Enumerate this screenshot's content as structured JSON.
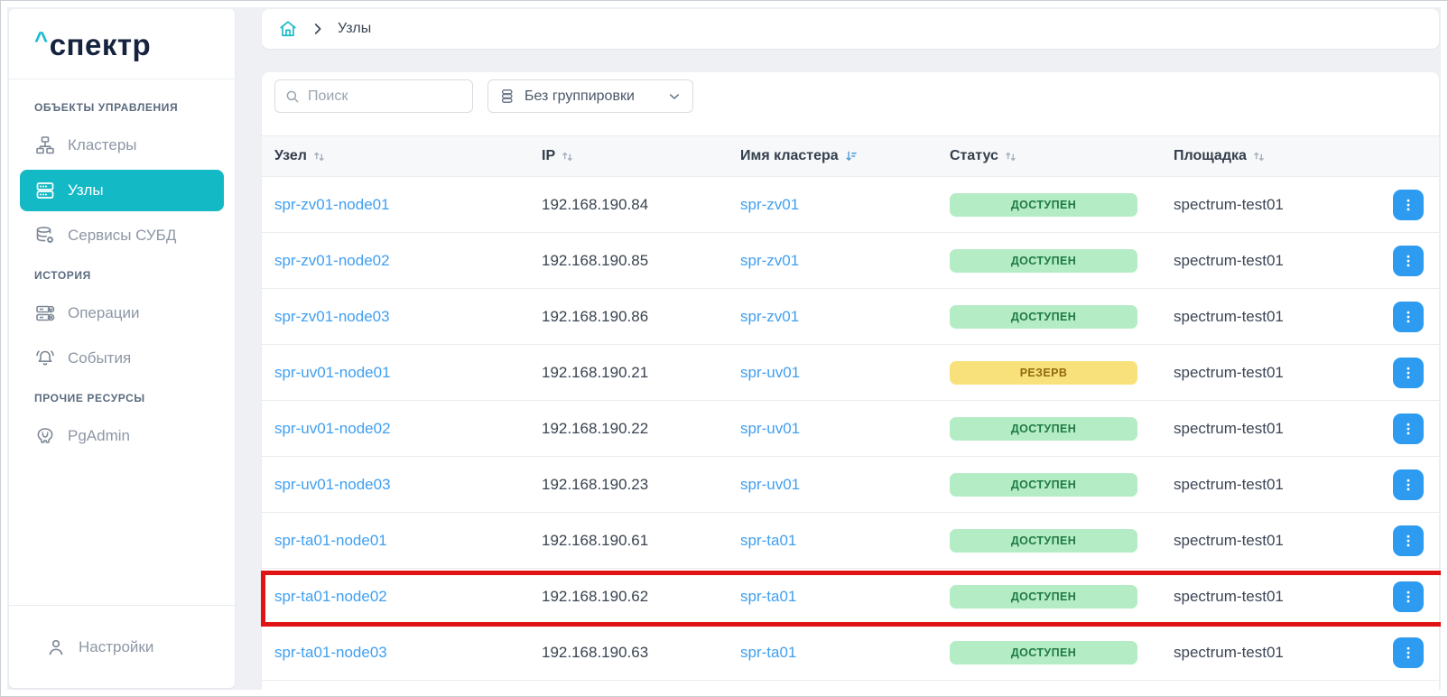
{
  "colors": {
    "accent_teal": "#14b9c6",
    "logo_navy": "#16233f",
    "link_blue": "#3f9ff0",
    "kebab_blue": "#2d9bf0",
    "highlight_red": "#e01414",
    "active_sort_blue": "#4a9bd8"
  },
  "sidebar": {
    "logo": {
      "caret": "^",
      "text": "спектр"
    },
    "sections": [
      {
        "label": "ОБЪЕКТЫ УПРАВЛЕНИЯ",
        "items": [
          {
            "label": "Кластеры",
            "icon": "clusters-icon",
            "active": false
          },
          {
            "label": "Узлы",
            "icon": "nodes-icon",
            "active": true
          },
          {
            "label": "Сервисы СУБД",
            "icon": "db-services-icon",
            "active": false
          }
        ]
      },
      {
        "label": "ИСТОРИЯ",
        "items": [
          {
            "label": "Операции",
            "icon": "operations-icon",
            "active": false
          },
          {
            "label": "События",
            "icon": "events-icon",
            "active": false
          }
        ]
      },
      {
        "label": "ПРОЧИЕ РЕСУРСЫ",
        "items": [
          {
            "label": "PgAdmin",
            "icon": "pgadmin-icon",
            "active": false
          }
        ]
      }
    ],
    "footer_item": {
      "label": "Настройки",
      "icon": "settings-icon"
    }
  },
  "breadcrumb": {
    "home_icon": "home-icon",
    "current": "Узлы"
  },
  "toolbar": {
    "search": {
      "placeholder": "Поиск",
      "value": "",
      "icon": "search-icon"
    },
    "grouping": {
      "label": "Без группировки",
      "icon": "grouping-icon",
      "chevron": "chevron-down-icon"
    }
  },
  "table": {
    "columns": [
      {
        "label": "Узел",
        "sort": "inactive"
      },
      {
        "label": "IP",
        "sort": "inactive"
      },
      {
        "label": "Имя кластера",
        "sort": "active"
      },
      {
        "label": "Статус",
        "sort": "inactive"
      },
      {
        "label": "Площадка",
        "sort": "inactive"
      }
    ],
    "statuses": {
      "available": {
        "label": "ДОСТУПЕН",
        "bg": "#b4ecc6",
        "fg": "#1f7a42"
      },
      "reserve": {
        "label": "РЕЗЕРВ",
        "bg": "#f8e17b",
        "fg": "#8f6a10"
      }
    },
    "rows": [
      {
        "node": "spr-zv01-node01",
        "ip": "192.168.190.84",
        "cluster": "spr-zv01",
        "status": "available",
        "site": "spectrum-test01"
      },
      {
        "node": "spr-zv01-node02",
        "ip": "192.168.190.85",
        "cluster": "spr-zv01",
        "status": "available",
        "site": "spectrum-test01"
      },
      {
        "node": "spr-zv01-node03",
        "ip": "192.168.190.86",
        "cluster": "spr-zv01",
        "status": "available",
        "site": "spectrum-test01"
      },
      {
        "node": "spr-uv01-node01",
        "ip": "192.168.190.21",
        "cluster": "spr-uv01",
        "status": "reserve",
        "site": "spectrum-test01"
      },
      {
        "node": "spr-uv01-node02",
        "ip": "192.168.190.22",
        "cluster": "spr-uv01",
        "status": "available",
        "site": "spectrum-test01"
      },
      {
        "node": "spr-uv01-node03",
        "ip": "192.168.190.23",
        "cluster": "spr-uv01",
        "status": "available",
        "site": "spectrum-test01"
      },
      {
        "node": "spr-ta01-node01",
        "ip": "192.168.190.61",
        "cluster": "spr-ta01",
        "status": "available",
        "site": "spectrum-test01"
      },
      {
        "node": "spr-ta01-node02",
        "ip": "192.168.190.62",
        "cluster": "spr-ta01",
        "status": "available",
        "site": "spectrum-test01"
      },
      {
        "node": "spr-ta01-node03",
        "ip": "192.168.190.63",
        "cluster": "spr-ta01",
        "status": "available",
        "site": "spectrum-test01"
      }
    ],
    "highlight": {
      "row_index": 7
    }
  }
}
